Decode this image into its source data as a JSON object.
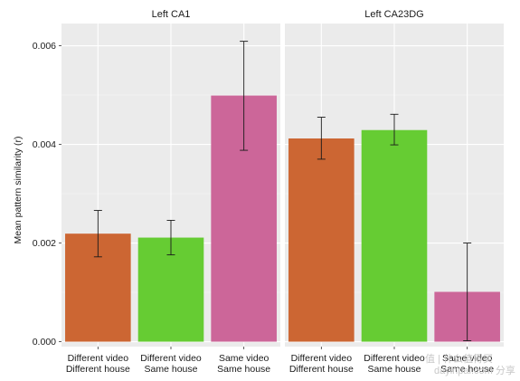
{
  "chart_data": {
    "type": "bar",
    "ylabel": "Mean pattern similarity (r)",
    "ylim": [
      -0.0001,
      0.00645
    ],
    "yticks": [
      0.0,
      0.002,
      0.004,
      0.006
    ],
    "ytick_labels": [
      "0.000",
      "0.002",
      "0.004",
      "0.006"
    ],
    "grid": true,
    "categories": [
      [
        "Different video",
        "Different house"
      ],
      [
        "Different video",
        "Same house"
      ],
      [
        "Same video",
        "Same house"
      ]
    ],
    "colors": [
      "#cc6633",
      "#66cc33",
      "#cc6699"
    ],
    "panels": [
      {
        "title": "Left CA1",
        "values": [
          0.00219,
          0.00211,
          0.00499
        ],
        "error_low": [
          0.00172,
          0.00176,
          0.00388
        ],
        "error_high": [
          0.00266,
          0.00246,
          0.00609
        ]
      },
      {
        "title": "Left CA23DG",
        "values": [
          0.00412,
          0.00429,
          0.00101
        ],
        "error_low": [
          0.0037,
          0.00399,
          2e-05
        ],
        "error_high": [
          0.00455,
          0.00461,
          0.002
        ]
      }
    ]
  },
  "watermark": {
    "line1": "值 | 什么值得买",
    "line2": "dayinpai.com 分享"
  }
}
